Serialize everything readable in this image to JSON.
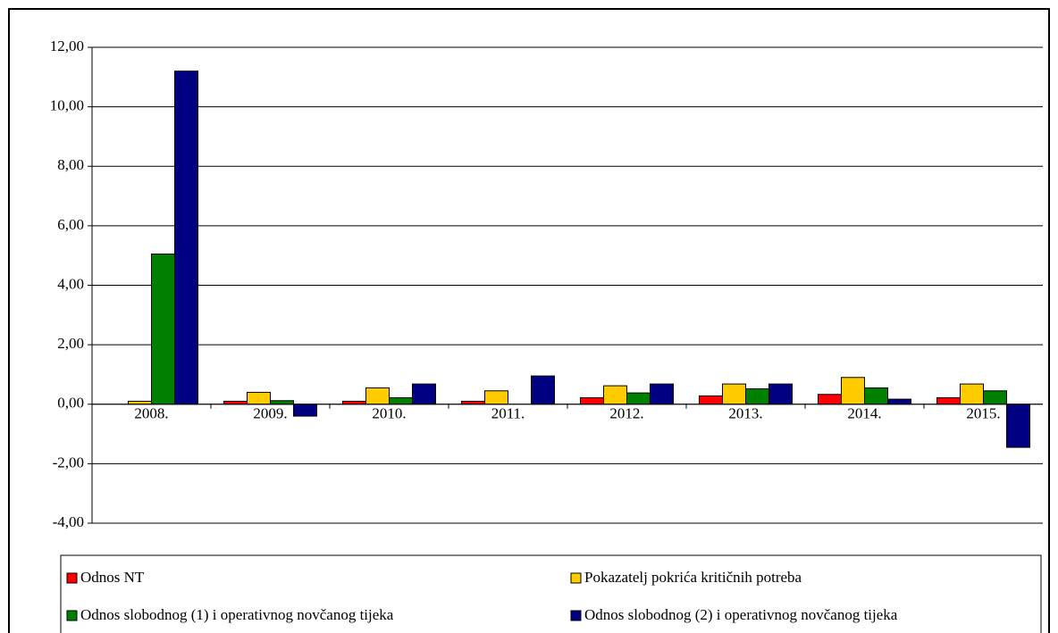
{
  "chart_data": {
    "type": "bar",
    "categories": [
      "2008.",
      "2009.",
      "2010.",
      "2011.",
      "2012.",
      "2013.",
      "2014.",
      "2015."
    ],
    "series": [
      {
        "name": "Odnos NT",
        "color": "#ff0000",
        "values": [
          0,
          0.1,
          0.1,
          0.1,
          0.22,
          0.28,
          0.33,
          0.22
        ]
      },
      {
        "name": "Pokazatelj pokrića kritičnih potreba",
        "color": "#ffcc00",
        "values": [
          0.1,
          0.4,
          0.55,
          0.45,
          0.62,
          0.68,
          0.9,
          0.68
        ]
      },
      {
        "name": "Odnos slobodnog (1) i operativnog novčanog tijeka",
        "color": "#008000",
        "values": [
          5.05,
          0.12,
          0.22,
          0,
          0.38,
          0.52,
          0.55,
          0.45
        ]
      },
      {
        "name": "Odnos slobodnog (2) i operativnog novčanog tijeka",
        "color": "#000080",
        "values": [
          11.2,
          -0.4,
          0.68,
          0.95,
          0.68,
          0.68,
          0.17,
          -1.45
        ]
      }
    ],
    "ylim": [
      -4,
      12
    ],
    "yticks": [
      {
        "value": -4,
        "label": "-4,00"
      },
      {
        "value": -2,
        "label": "-2,00"
      },
      {
        "value": 0,
        "label": "0,00"
      },
      {
        "value": 2,
        "label": "2,00"
      },
      {
        "value": 4,
        "label": "4,00"
      },
      {
        "value": 6,
        "label": "6,00"
      },
      {
        "value": 8,
        "label": "8,00"
      },
      {
        "value": 10,
        "label": "10,00"
      },
      {
        "value": 12,
        "label": "12,00"
      }
    ],
    "grid": true,
    "legend": "bottom"
  }
}
